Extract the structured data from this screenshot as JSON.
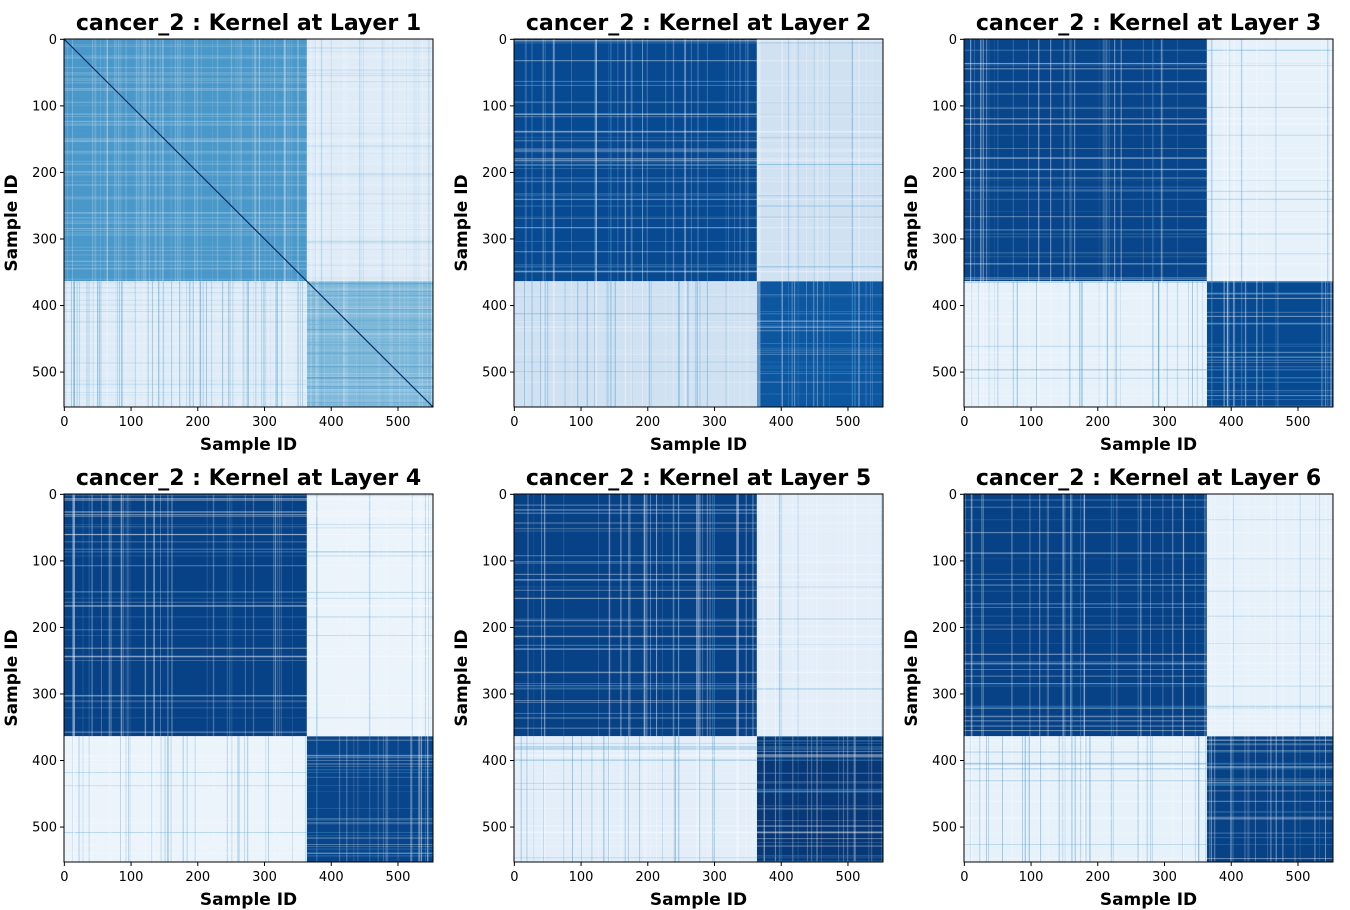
{
  "chart_data": [
    {
      "type": "heatmap",
      "title": "cancer_2 : Kernel at Layer 1",
      "xlabel": "Sample ID",
      "ylabel": "Sample ID",
      "n_samples": 553,
      "cluster_boundary": 364,
      "xticks": [
        0,
        100,
        200,
        300,
        400,
        500
      ],
      "yticks": [
        0,
        100,
        200,
        300,
        400,
        500
      ],
      "colormap": "Blues",
      "block_values": {
        "cluster1": 0.6,
        "cluster2": 0.45,
        "off_diagonal": 0.12
      },
      "diagonal_emphasis": true
    },
    {
      "type": "heatmap",
      "title": "cancer_2 : Kernel at Layer 2",
      "xlabel": "Sample ID",
      "ylabel": "Sample ID",
      "n_samples": 553,
      "cluster_boundary": 364,
      "xticks": [
        0,
        100,
        200,
        300,
        400,
        500
      ],
      "yticks": [
        0,
        100,
        200,
        300,
        400,
        500
      ],
      "colormap": "Blues",
      "block_values": {
        "cluster1": 0.9,
        "cluster2": 0.85,
        "off_diagonal": 0.2
      },
      "diagonal_emphasis": false
    },
    {
      "type": "heatmap",
      "title": "cancer_2 : Kernel at Layer 3",
      "xlabel": "Sample ID",
      "ylabel": "Sample ID",
      "n_samples": 553,
      "cluster_boundary": 364,
      "xticks": [
        0,
        100,
        200,
        300,
        400,
        500
      ],
      "yticks": [
        0,
        100,
        200,
        300,
        400,
        500
      ],
      "colormap": "Blues",
      "block_values": {
        "cluster1": 0.92,
        "cluster2": 0.9,
        "off_diagonal": 0.08
      },
      "diagonal_emphasis": false
    },
    {
      "type": "heatmap",
      "title": "cancer_2 : Kernel at Layer 4",
      "xlabel": "Sample ID",
      "ylabel": "Sample ID",
      "n_samples": 553,
      "cluster_boundary": 364,
      "xticks": [
        0,
        100,
        200,
        300,
        400,
        500
      ],
      "yticks": [
        0,
        100,
        200,
        300,
        400,
        500
      ],
      "colormap": "Blues",
      "block_values": {
        "cluster1": 0.93,
        "cluster2": 0.92,
        "off_diagonal": 0.06
      },
      "diagonal_emphasis": false
    },
    {
      "type": "heatmap",
      "title": "cancer_2 : Kernel at Layer 5",
      "xlabel": "Sample ID",
      "ylabel": "Sample ID",
      "n_samples": 553,
      "cluster_boundary": 364,
      "xticks": [
        0,
        100,
        200,
        300,
        400,
        500
      ],
      "yticks": [
        0,
        100,
        200,
        300,
        400,
        500
      ],
      "colormap": "Blues",
      "block_values": {
        "cluster1": 0.93,
        "cluster2": 0.97,
        "off_diagonal": 0.1
      },
      "diagonal_emphasis": false
    },
    {
      "type": "heatmap",
      "title": "cancer_2 : Kernel at Layer 6",
      "xlabel": "Sample ID",
      "ylabel": "Sample ID",
      "n_samples": 553,
      "cluster_boundary": 364,
      "xticks": [
        0,
        100,
        200,
        300,
        400,
        500
      ],
      "yticks": [
        0,
        100,
        200,
        300,
        400,
        500
      ],
      "colormap": "Blues",
      "block_values": {
        "cluster1": 0.93,
        "cluster2": 0.93,
        "off_diagonal": 0.08
      },
      "diagonal_emphasis": false
    }
  ]
}
